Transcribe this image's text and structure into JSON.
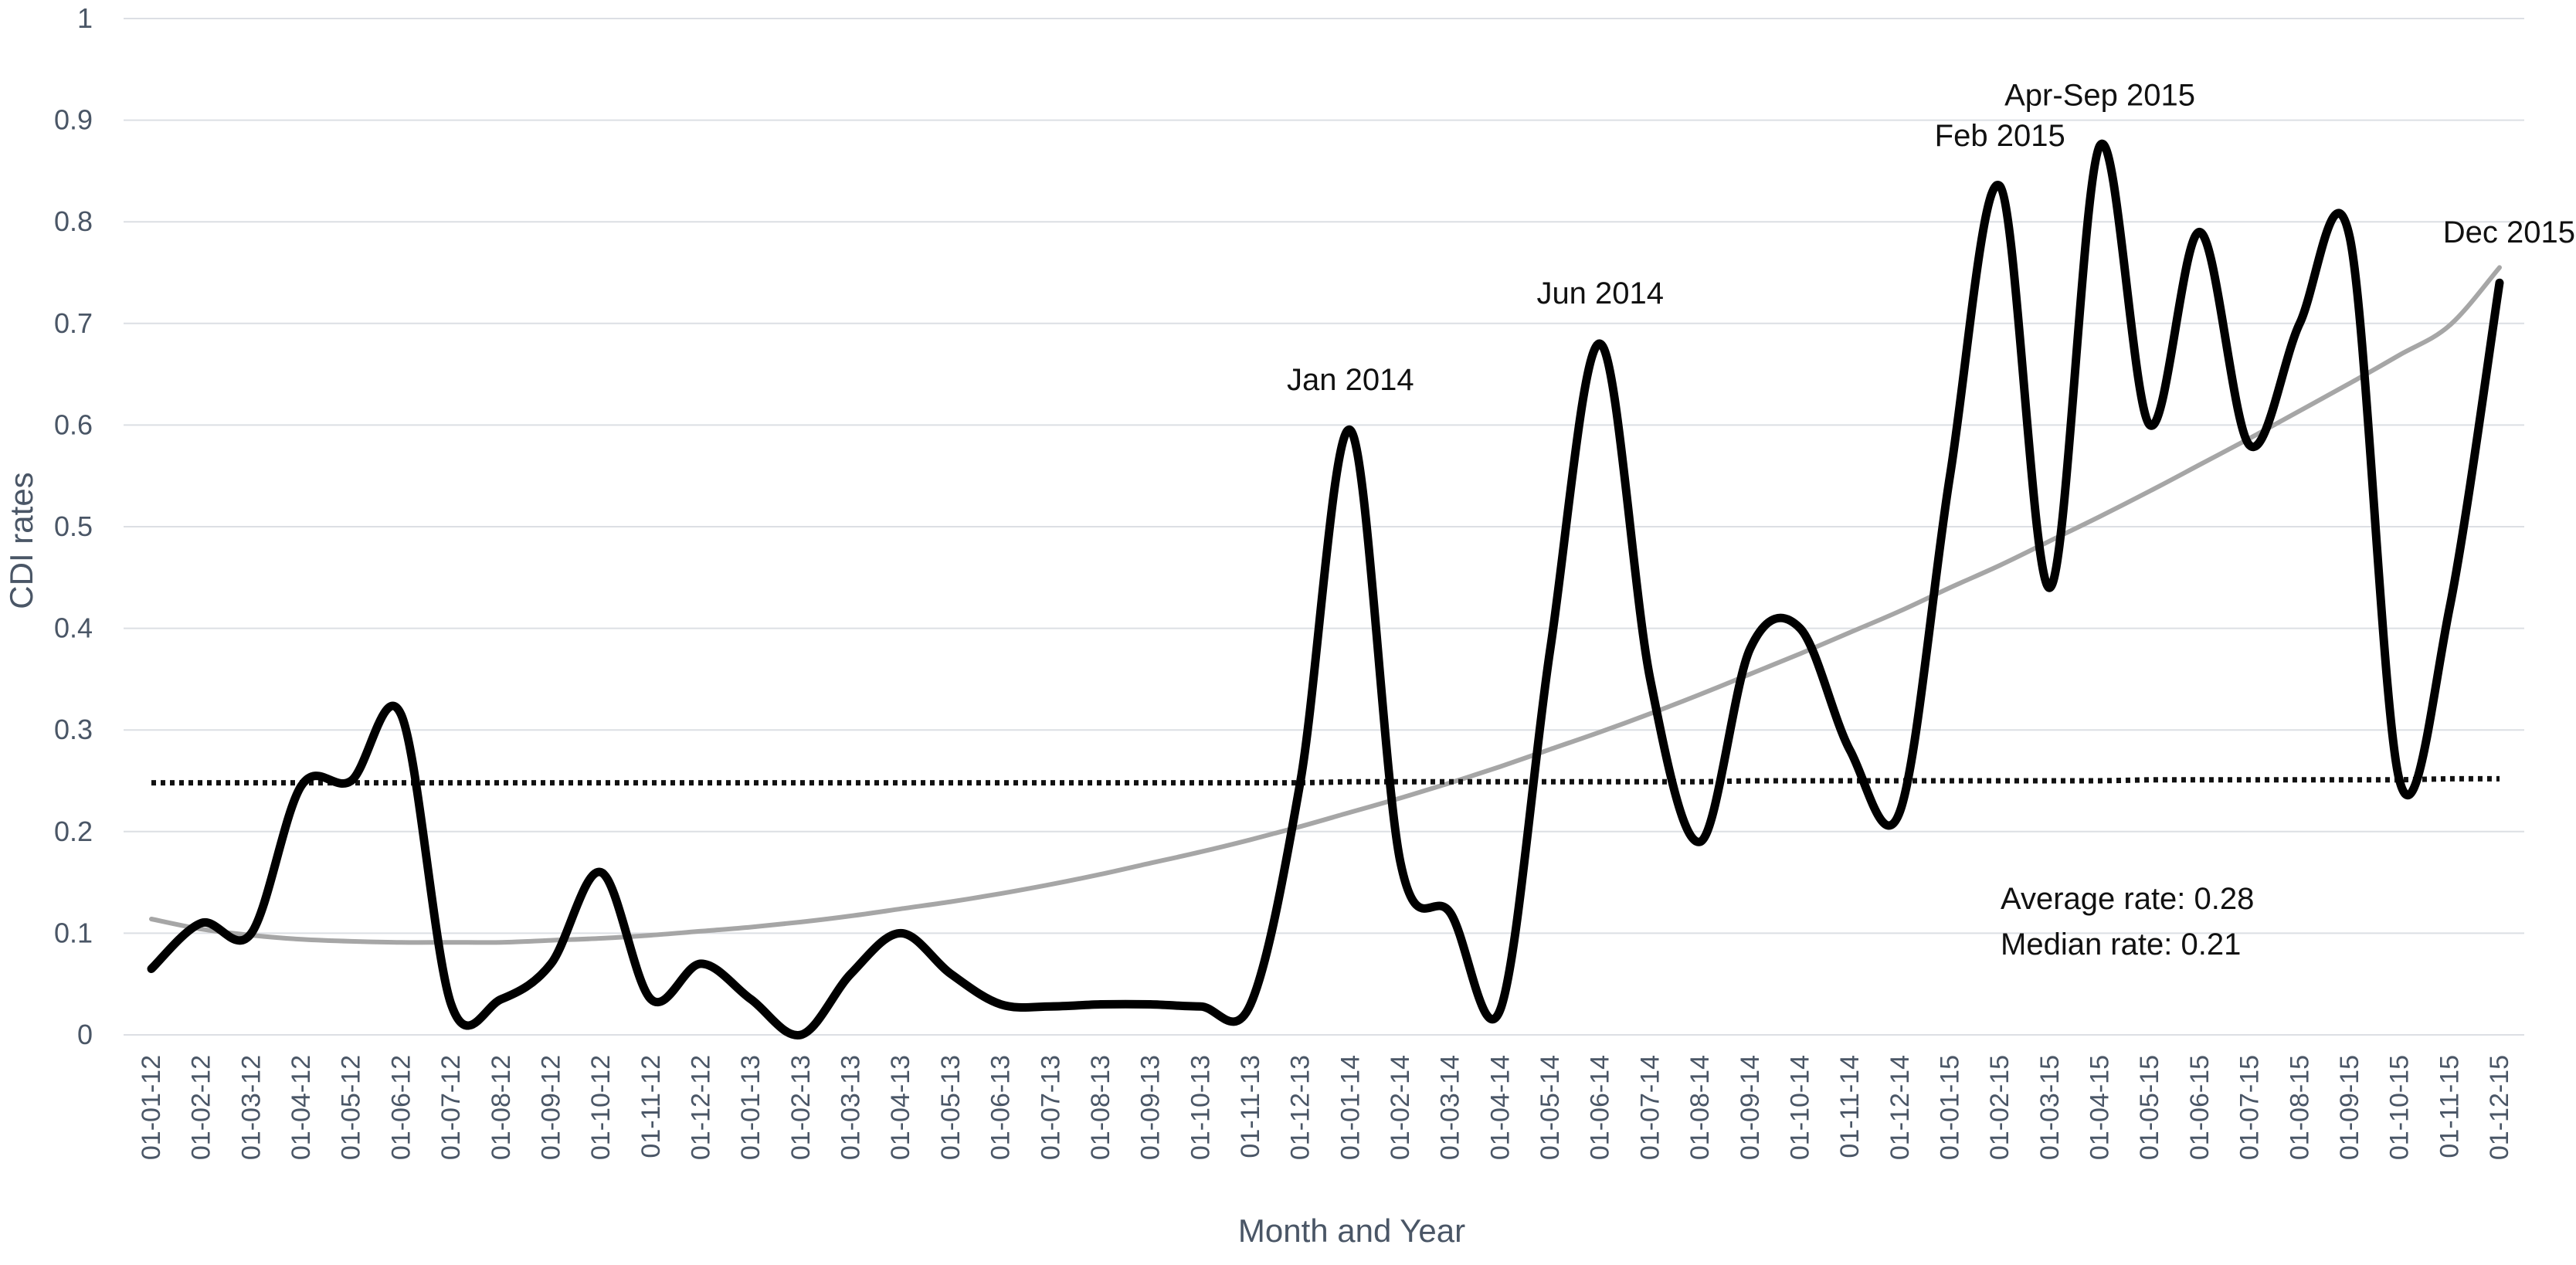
{
  "chart_data": {
    "type": "line",
    "xlabel": "Month and Year",
    "ylabel": "CDI rates",
    "ylim": [
      0,
      1
    ],
    "yticks": [
      "0",
      "0.1",
      "0.2",
      "0.3",
      "0.4",
      "0.5",
      "0.6",
      "0.7",
      "0.8",
      "0.9",
      "1"
    ],
    "grid": true,
    "categories": [
      "01-01-12",
      "01-02-12",
      "01-03-12",
      "01-04-12",
      "01-05-12",
      "01-06-12",
      "01-07-12",
      "01-08-12",
      "01-09-12",
      "01-10-12",
      "01-11-12",
      "01-12-12",
      "01-01-13",
      "01-02-13",
      "01-03-13",
      "01-04-13",
      "01-05-13",
      "01-06-13",
      "01-07-13",
      "01-08-13",
      "01-09-13",
      "01-10-13",
      "01-11-13",
      "01-12-13",
      "01-01-14",
      "01-02-14",
      "01-03-14",
      "01-04-14",
      "01-05-14",
      "01-06-14",
      "01-07-14",
      "01-08-14",
      "01-09-14",
      "01-10-14",
      "01-11-14",
      "01-12-14",
      "01-01-15",
      "01-02-15",
      "01-03-15",
      "01-04-15",
      "01-05-15",
      "01-06-15",
      "01-07-15",
      "01-08-15",
      "01-09-15",
      "01-10-15",
      "01-11-15",
      "01-12-15"
    ],
    "series": [
      {
        "values": [
          0.065,
          0.11,
          0.1,
          0.245,
          0.25,
          0.315,
          0.03,
          0.035,
          0.07,
          0.16,
          0.035,
          0.07,
          0.035,
          0.0,
          0.06,
          0.1,
          0.06,
          0.03,
          0.028,
          0.03,
          0.03,
          0.028,
          0.03,
          0.25,
          0.595,
          0.17,
          0.12,
          0.025,
          0.38,
          0.68,
          0.35,
          0.19,
          0.38,
          0.4,
          0.28,
          0.22,
          0.55,
          0.835,
          0.44,
          0.875,
          0.6,
          0.79,
          0.58,
          0.7,
          0.785,
          0.25,
          0.42,
          0.74
        ],
        "color": "#000000"
      },
      {
        "values": [
          0.114,
          0.104,
          0.098,
          0.094,
          0.092,
          0.091,
          0.091,
          0.091,
          0.093,
          0.095,
          0.098,
          0.102,
          0.106,
          0.111,
          0.117,
          0.124,
          0.131,
          0.139,
          0.148,
          0.158,
          0.169,
          0.18,
          0.192,
          0.205,
          0.219,
          0.233,
          0.248,
          0.264,
          0.281,
          0.298,
          0.316,
          0.335,
          0.355,
          0.375,
          0.396,
          0.417,
          0.44,
          0.462,
          0.486,
          0.51,
          0.535,
          0.561,
          0.587,
          0.614,
          0.641,
          0.669,
          0.698,
          0.755
        ],
        "color": "#a6a6a6"
      },
      {
        "values": [
          0.248,
          0.248,
          0.248,
          0.248,
          0.248,
          0.248,
          0.248,
          0.248,
          0.248,
          0.248,
          0.248,
          0.248,
          0.248,
          0.248,
          0.248,
          0.248,
          0.248,
          0.248,
          0.248,
          0.248,
          0.248,
          0.248,
          0.248,
          0.248,
          0.249,
          0.249,
          0.249,
          0.249,
          0.249,
          0.249,
          0.249,
          0.249,
          0.25,
          0.25,
          0.25,
          0.25,
          0.25,
          0.25,
          0.25,
          0.25,
          0.251,
          0.251,
          0.251,
          0.251,
          0.251,
          0.251,
          0.252,
          0.252
        ],
        "color": "#111111",
        "style": "dotted"
      }
    ],
    "annotations": [
      {
        "text": "Jan 2014",
        "x": "01-01-14",
        "y": 0.595
      },
      {
        "text": "Jun 2014",
        "x": "01-06-14",
        "y": 0.68
      },
      {
        "text": "Feb 2015",
        "x": "01-02-15",
        "y": 0.835
      },
      {
        "text": "Apr-Sep 2015",
        "x": "01-04-15",
        "y": 0.875
      },
      {
        "text": "Dec 2015",
        "x": "01-12-15",
        "y": 0.74
      }
    ],
    "stats": {
      "average": "Average rate: 0.28",
      "median": "Median rate: 0.21"
    }
  }
}
